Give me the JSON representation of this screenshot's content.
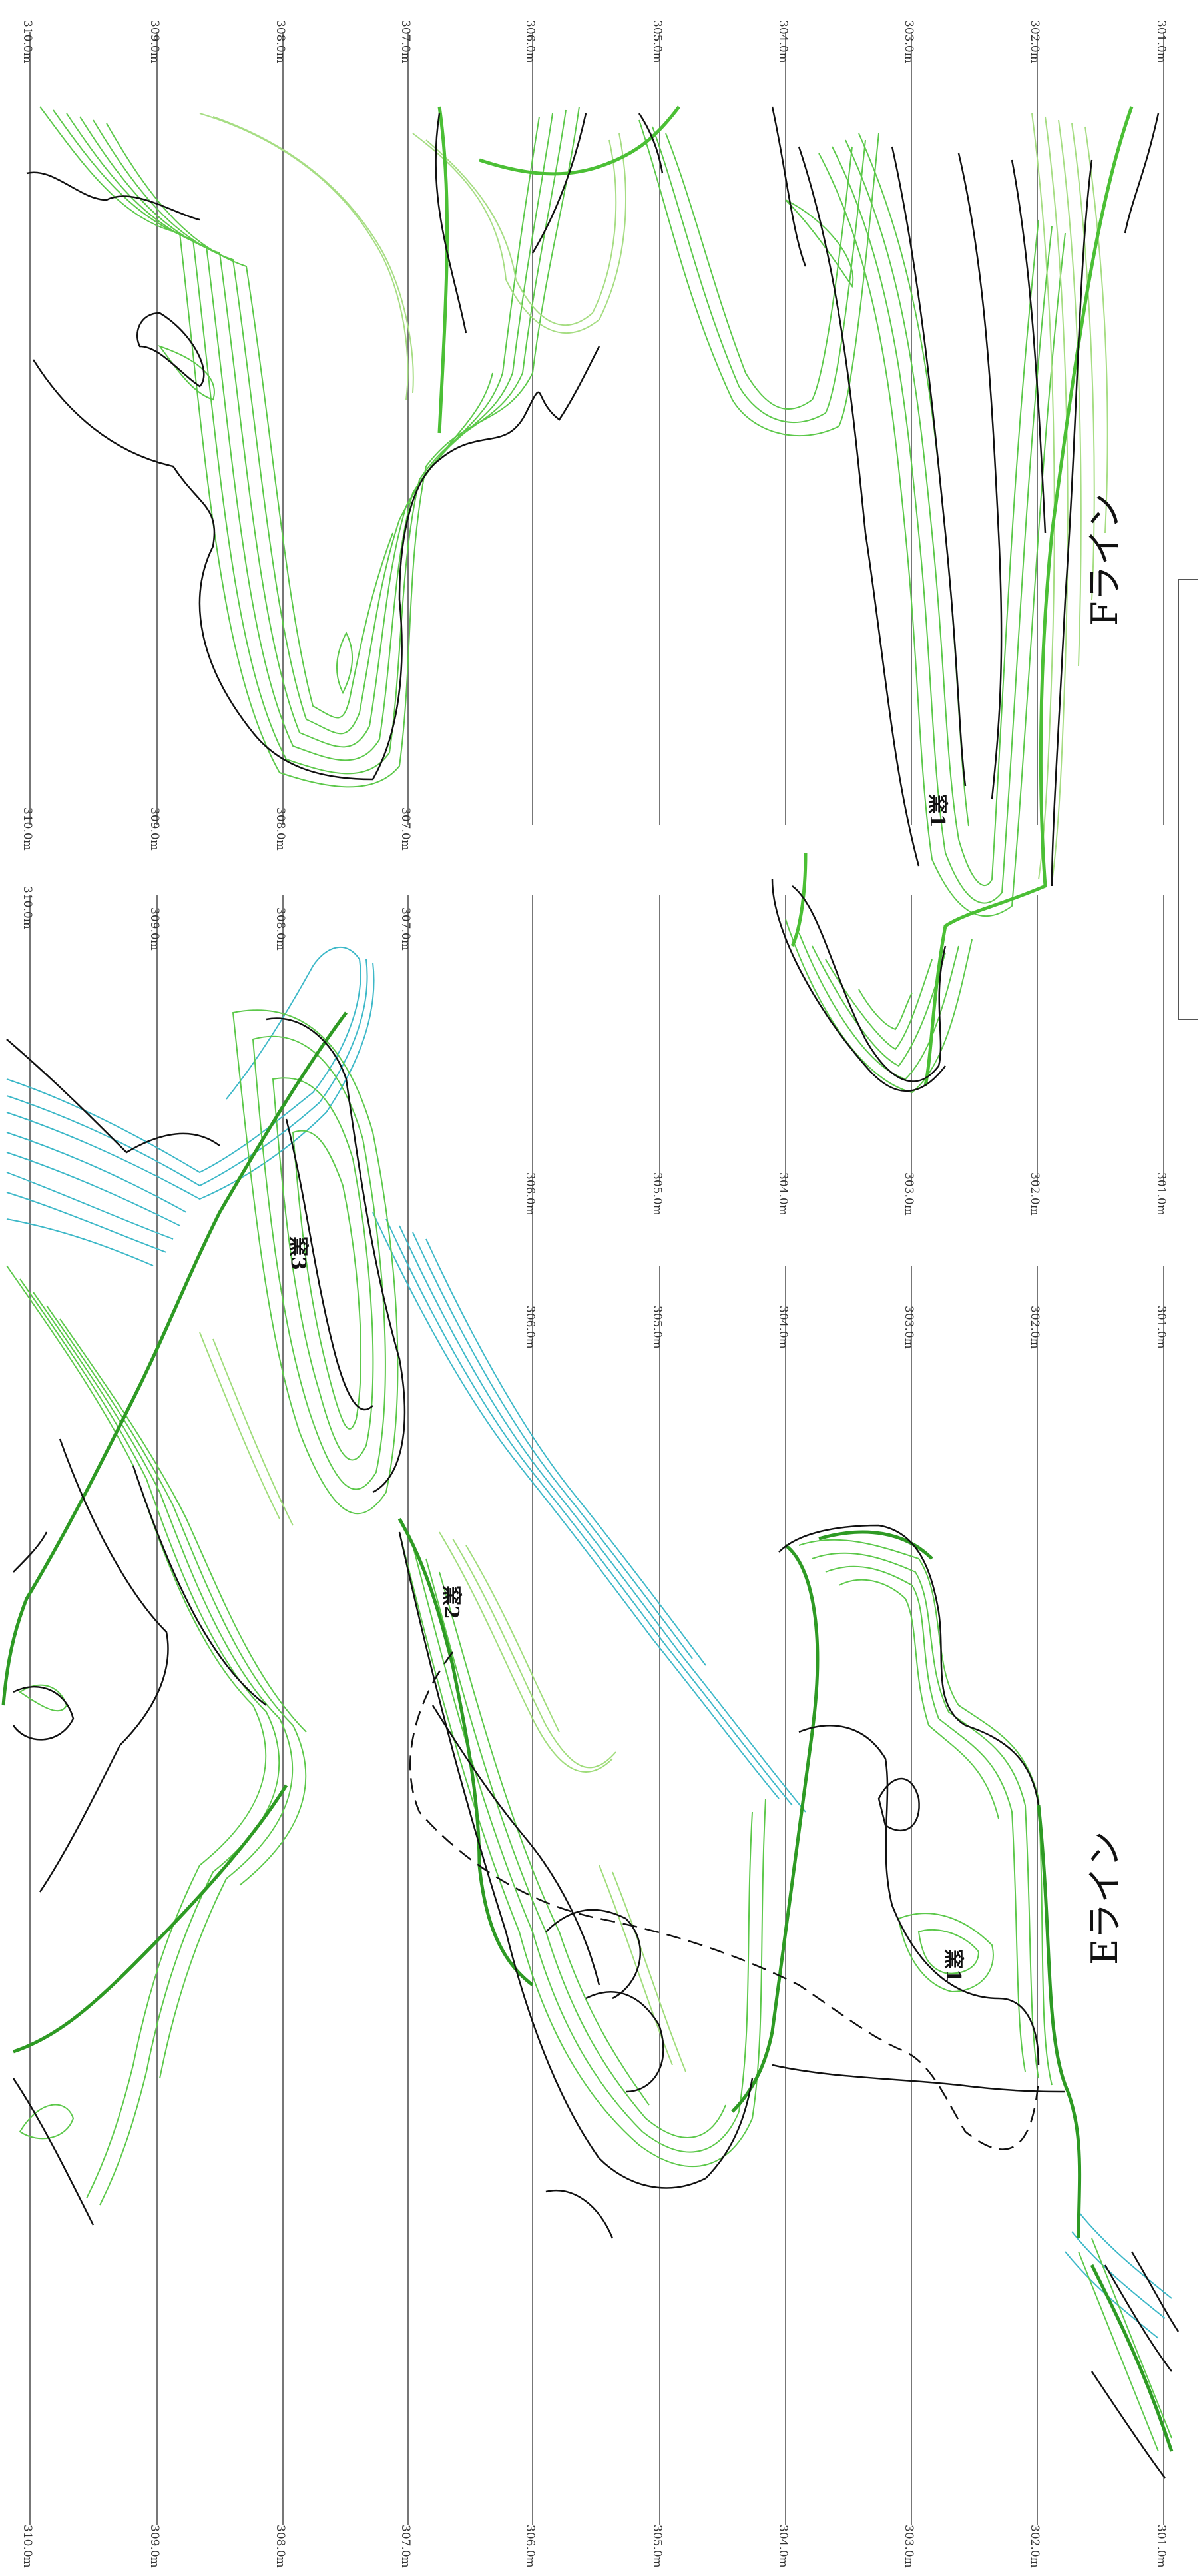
{
  "upper_panel": {
    "line_title": "Fライン",
    "top_labels": [
      "310.0m",
      "309.0m",
      "308.0m",
      "307.0m",
      "306.0m",
      "305.0m",
      "304.0m",
      "303.0m",
      "302.0m",
      "301.0m"
    ],
    "bottom_labels": [
      "310.0m",
      "309.0m",
      "308.0m",
      "307.0m"
    ],
    "kiln_label": "窯1"
  },
  "lower_panel": {
    "line_title": "Eライン",
    "top_labels_right": [
      "310.0m",
      "309.0m",
      "308.0m",
      "307.0m"
    ],
    "top_labels_left": [
      "306.0m",
      "305.0m",
      "304.0m",
      "303.0m",
      "302.0m",
      "301.0m"
    ],
    "upper_labels_low": [
      "306.0m",
      "305.0m",
      "304.0m",
      "303.0m",
      "302.0m",
      "301.0m"
    ],
    "bottom_labels": [
      "310.0m",
      "309.0m",
      "308.0m",
      "307.0m",
      "306.0m",
      "305.0m",
      "304.0m",
      "303.0m",
      "302.0m",
      "301.0m"
    ],
    "kiln_labels": [
      "窯1",
      "窯2",
      "窯3"
    ]
  },
  "colors": {
    "green_contour": "#4fbf3a",
    "light_green_contour": "#9fdc7a",
    "cyan_contour": "#2fb6c9",
    "black_contour": "#111111",
    "gridline": "#777777"
  }
}
